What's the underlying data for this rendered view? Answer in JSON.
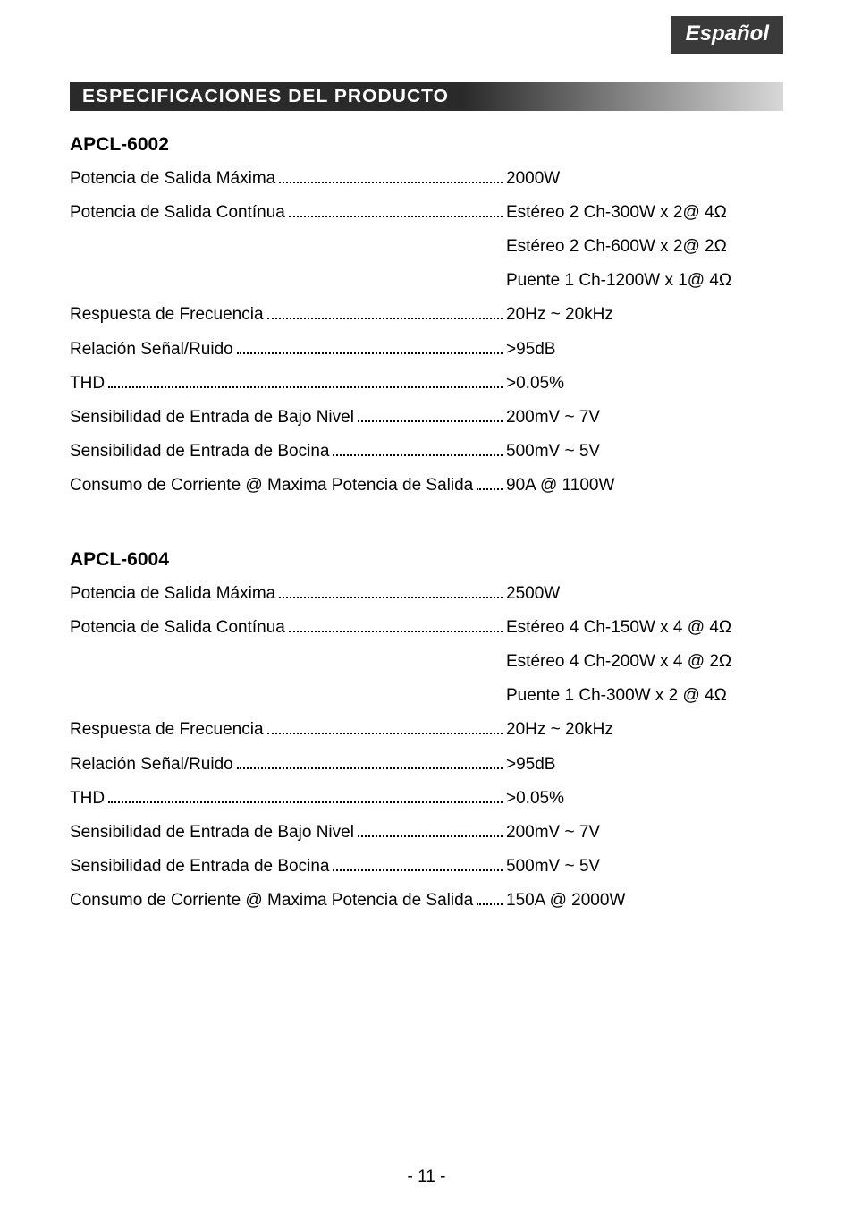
{
  "language_tab": "Español",
  "section_title": "ESPECIFICACIONES DEL PRODUCTO",
  "page_number": "- 11 -",
  "colors": {
    "lang_tab_bg": "#3a3a3a",
    "header_dark": "#2a2a2a",
    "header_light": "#d8d8d8",
    "text": "#000000",
    "page_bg": "#ffffff"
  },
  "typography": {
    "body_font": "Arial",
    "body_size_pt": 14,
    "heading_weight": "bold",
    "lang_tab_italic": true
  },
  "models": [
    {
      "name": "APCL-6002",
      "rows": [
        {
          "label": "Potencia de Salida Máxima",
          "value": "2000W",
          "dots": true
        },
        {
          "label": "Potencia de Salida Contínua",
          "value": "Estéreo 2 Ch-300W x 2@ 4Ω",
          "dots": true
        },
        {
          "label": "",
          "value": "Estéreo 2 Ch-600W x 2@ 2Ω",
          "dots": false
        },
        {
          "label": "",
          "value": "Puente 1 Ch-1200W x 1@ 4Ω",
          "dots": false
        },
        {
          "label": "Respuesta de Frecuencia",
          "value": "20Hz ~ 20kHz",
          "dots": true
        },
        {
          "label": "Relación Señal/Ruido",
          "value": ">95dB",
          "dots": true
        },
        {
          "label": "THD",
          "value": ">0.05%",
          "dots": true
        },
        {
          "label": "Sensibilidad de Entrada de Bajo Nivel",
          "value": "200mV ~ 7V",
          "dots": true
        },
        {
          "label": "Sensibilidad de Entrada de Bocina",
          "value": "500mV ~ 5V",
          "dots": true
        },
        {
          "label": "Consumo de Corriente @ Maxima Potencia de Salida",
          "value": "90A @ 1100W",
          "dots": true
        }
      ]
    },
    {
      "name": "APCL-6004",
      "rows": [
        {
          "label": "Potencia de Salida Máxima",
          "value": "2500W",
          "dots": true
        },
        {
          "label": "Potencia de Salida Contínua",
          "value": "Estéreo 4 Ch-150W x 4 @ 4Ω",
          "dots": true
        },
        {
          "label": "",
          "value": "Estéreo 4 Ch-200W x 4 @ 2Ω",
          "dots": false
        },
        {
          "label": "",
          "value": "Puente 1 Ch-300W x 2 @ 4Ω",
          "dots": false
        },
        {
          "label": "Respuesta de Frecuencia",
          "value": "20Hz ~ 20kHz",
          "dots": true
        },
        {
          "label": "Relación Señal/Ruido",
          "value": ">95dB",
          "dots": true
        },
        {
          "label": "THD",
          "value": ">0.05%",
          "dots": true
        },
        {
          "label": "Sensibilidad de Entrada de Bajo Nivel",
          "value": "200mV ~ 7V",
          "dots": true
        },
        {
          "label": "Sensibilidad de Entrada de Bocina",
          "value": "500mV ~ 5V",
          "dots": true
        },
        {
          "label": "Consumo de Corriente @ Maxima Potencia de Salida",
          "value": "150A @ 2000W",
          "dots": true
        }
      ]
    }
  ]
}
